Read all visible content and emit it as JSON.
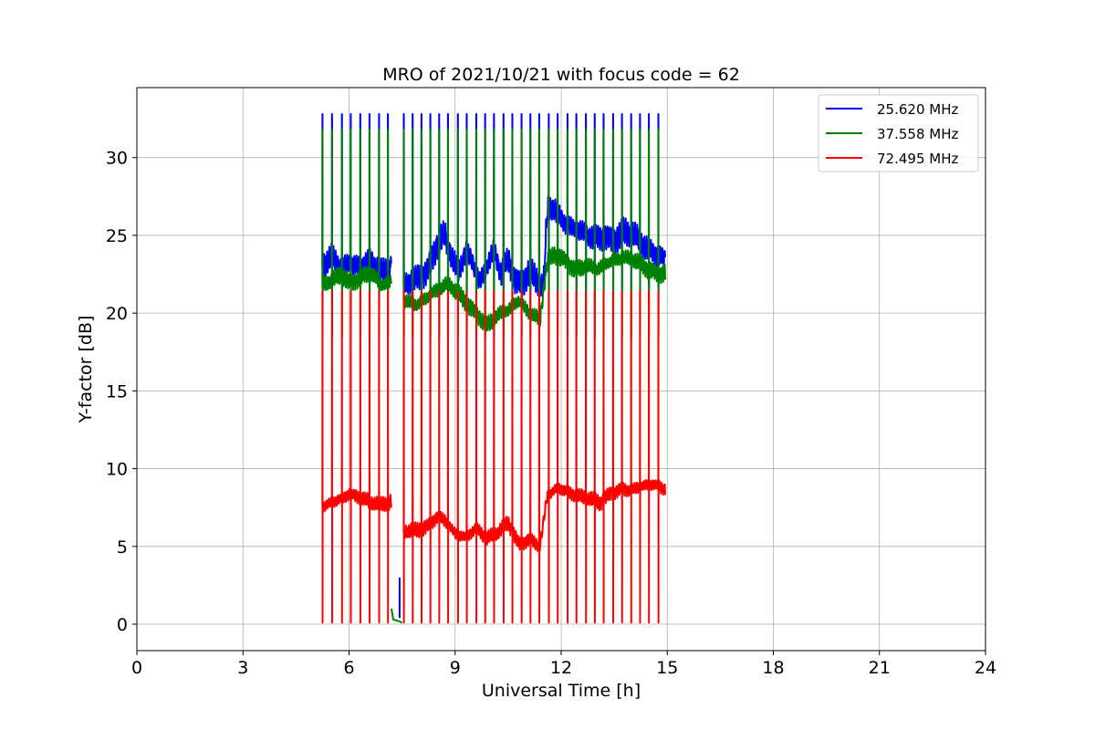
{
  "chart_data": {
    "type": "line",
    "title": "MRO of 2021/10/21 with focus code = 62",
    "xlabel": "Universal Time [h]",
    "ylabel": "Y-factor [dB]",
    "xlim": [
      0,
      24
    ],
    "ylim": [
      -1.7,
      34.5
    ],
    "xticks": [
      0,
      3,
      6,
      9,
      12,
      15,
      18,
      21,
      24
    ],
    "yticks": [
      0,
      5,
      10,
      15,
      20,
      25,
      30
    ],
    "grid": true,
    "legend_position": "top-right",
    "spike_times": [
      5.25,
      5.52,
      5.8,
      6.05,
      6.32,
      6.58,
      6.85,
      7.1,
      7.55,
      7.8,
      8.05,
      8.3,
      8.55,
      8.8,
      9.08,
      9.33,
      9.6,
      9.85,
      10.1,
      10.37,
      10.62,
      10.88,
      11.13,
      11.38,
      11.65,
      11.9,
      12.18,
      12.43,
      12.7,
      12.95,
      13.2,
      13.47,
      13.72,
      13.98,
      14.23,
      14.48,
      14.75
    ],
    "gap": {
      "start": 7.2,
      "end": 7.55
    },
    "series": [
      {
        "name": "25.620 MHz",
        "color": "#0000ff",
        "spike_top": 32.8,
        "spike_bottom": 21.5,
        "baseline": {
          "x": [
            5.25,
            5.5,
            5.8,
            6.0,
            6.3,
            6.6,
            6.9,
            7.2,
            7.55,
            7.9,
            8.2,
            8.5,
            8.7,
            8.9,
            9.1,
            9.3,
            9.5,
            9.7,
            9.9,
            10.1,
            10.3,
            10.5,
            10.7,
            10.9,
            11.1,
            11.3,
            11.5,
            11.6,
            11.8,
            12.0,
            12.3,
            12.6,
            12.9,
            13.2,
            13.5,
            13.8,
            14.1,
            14.4,
            14.7,
            14.95
          ],
          "y": [
            23.0,
            23.5,
            22.8,
            23.2,
            23.0,
            23.4,
            22.6,
            23.0,
            21.8,
            22.2,
            22.8,
            24.5,
            25.0,
            23.5,
            22.5,
            24.0,
            23.2,
            22.0,
            23.0,
            24.0,
            22.5,
            23.5,
            22.2,
            22.0,
            22.8,
            22.0,
            21.6,
            26.5,
            26.8,
            26.0,
            25.5,
            25.2,
            24.8,
            25.0,
            24.8,
            25.2,
            24.8,
            24.2,
            23.8,
            23.5
          ]
        }
      },
      {
        "name": "37.558 MHz",
        "color": "#008000",
        "spike_top": 31.8,
        "spike_bottom": 18.5,
        "baseline": {
          "x": [
            5.25,
            5.5,
            5.8,
            6.0,
            6.3,
            6.6,
            6.9,
            7.2,
            7.55,
            7.9,
            8.2,
            8.5,
            8.8,
            9.1,
            9.4,
            9.7,
            9.9,
            10.2,
            10.5,
            10.8,
            11.1,
            11.4,
            11.6,
            11.8,
            12.1,
            12.4,
            12.7,
            13.0,
            13.3,
            13.6,
            13.9,
            14.2,
            14.5,
            14.8,
            14.95
          ],
          "y": [
            21.8,
            22.0,
            22.5,
            22.0,
            22.3,
            22.6,
            21.8,
            22.0,
            20.8,
            20.5,
            21.0,
            21.5,
            21.8,
            21.2,
            20.5,
            19.8,
            19.2,
            19.8,
            20.2,
            20.8,
            20.0,
            19.5,
            23.2,
            23.8,
            23.5,
            22.8,
            23.0,
            22.8,
            23.2,
            23.5,
            23.5,
            23.2,
            22.8,
            22.6,
            22.6
          ]
        }
      },
      {
        "name": "72.495 MHz",
        "color": "#ff0000",
        "spike_top": 21.4,
        "spike_bottom": 0.1,
        "baseline": {
          "x": [
            5.25,
            5.5,
            5.8,
            6.0,
            6.3,
            6.6,
            6.9,
            7.2,
            7.55,
            7.9,
            8.2,
            8.5,
            8.8,
            9.0,
            9.3,
            9.6,
            9.9,
            10.2,
            10.5,
            10.8,
            11.1,
            11.4,
            11.6,
            11.9,
            12.2,
            12.5,
            12.8,
            13.1,
            13.4,
            13.7,
            14.0,
            14.3,
            14.6,
            14.95
          ],
          "y": [
            7.6,
            7.8,
            8.1,
            8.4,
            8.2,
            7.8,
            7.6,
            7.9,
            5.9,
            6.0,
            6.3,
            7.0,
            6.5,
            5.8,
            5.6,
            6.2,
            5.5,
            5.8,
            6.5,
            5.2,
            5.5,
            5.0,
            8.2,
            8.8,
            8.5,
            8.2,
            8.0,
            7.8,
            8.5,
            8.7,
            8.6,
            8.9,
            9.0,
            8.7
          ]
        }
      }
    ],
    "gap_artifact": {
      "blue": {
        "x": [
          7.43,
          7.43
        ],
        "y": [
          0.4,
          3.0
        ]
      },
      "green": {
        "x": [
          7.2,
          7.25,
          7.4,
          7.5
        ],
        "y": [
          1.0,
          0.3,
          0.2,
          0.1
        ]
      }
    }
  }
}
